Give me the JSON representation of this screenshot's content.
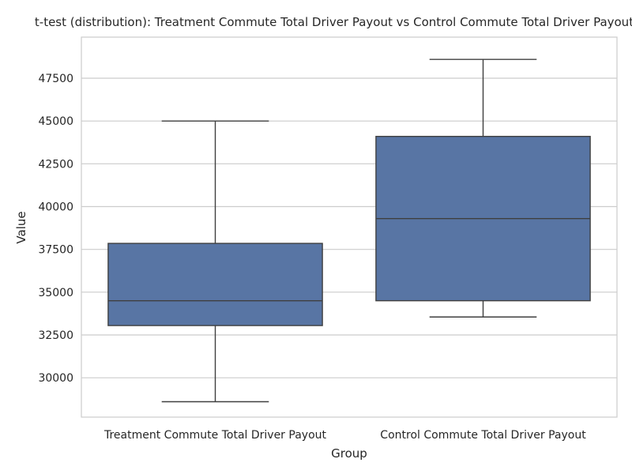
{
  "chart_data": {
    "type": "box",
    "title": "t-test (distribution): Treatment Commute Total Driver Payout vs Control Commute Total Driver Payout",
    "xlabel": "Group",
    "ylabel": "Value",
    "ylim": [
      27700,
      49900
    ],
    "yticks": [
      30000,
      32500,
      35000,
      37500,
      40000,
      42500,
      45000,
      47500
    ],
    "grid": true,
    "legend": "none",
    "box_color": "#5875a4",
    "line_color": "#3f3f3f",
    "grid_color": "#cccccc",
    "groups": [
      {
        "name": "Treatment Commute Total Driver Payout",
        "whisker_low": 28600,
        "q1": 33050,
        "median": 34500,
        "q3": 37850,
        "whisker_high": 45000
      },
      {
        "name": "Control Commute Total Driver Payout",
        "whisker_low": 33550,
        "q1": 34500,
        "median": 39300,
        "q3": 44100,
        "whisker_high": 48600
      }
    ]
  }
}
